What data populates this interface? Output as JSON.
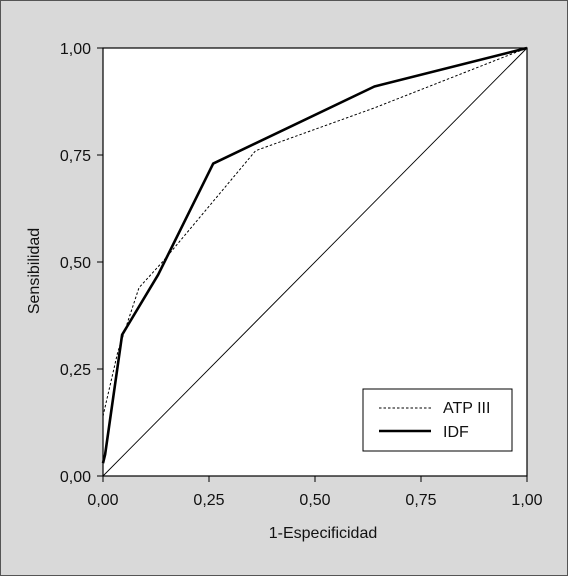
{
  "chart_data": {
    "type": "line",
    "title": "",
    "xlabel": "1-Especificidad",
    "ylabel": "Sensibilidad",
    "xlim": [
      0,
      1
    ],
    "ylim": [
      0,
      1
    ],
    "x_ticks": [
      0,
      0.25,
      0.5,
      0.75,
      1
    ],
    "y_ticks": [
      0,
      0.25,
      0.5,
      0.75,
      1
    ],
    "x_tick_labels": [
      "0,00",
      "0,25",
      "0,50",
      "0,75",
      "1,00"
    ],
    "y_tick_labels": [
      "0,00",
      "0,25",
      "0,50",
      "0,75",
      "1,00"
    ],
    "grid": false,
    "legend_position": "bottom-right",
    "reference_line": {
      "x": [
        0,
        1
      ],
      "y": [
        0,
        1
      ],
      "style": "solid-thin"
    },
    "series": [
      {
        "name": "ATP III",
        "style": "dashed",
        "color": "#000000",
        "x": [
          0,
          0.035,
          0.085,
          0.14,
          0.36,
          0.64,
          1.0
        ],
        "y": [
          0.14,
          0.29,
          0.44,
          0.5,
          0.76,
          0.86,
          1.0
        ]
      },
      {
        "name": "IDF",
        "style": "solid-bold",
        "color": "#000000",
        "x": [
          0,
          0.005,
          0.045,
          0.13,
          0.26,
          0.64,
          1.0
        ],
        "y": [
          0.03,
          0.05,
          0.33,
          0.47,
          0.73,
          0.91,
          1.0
        ]
      }
    ]
  }
}
